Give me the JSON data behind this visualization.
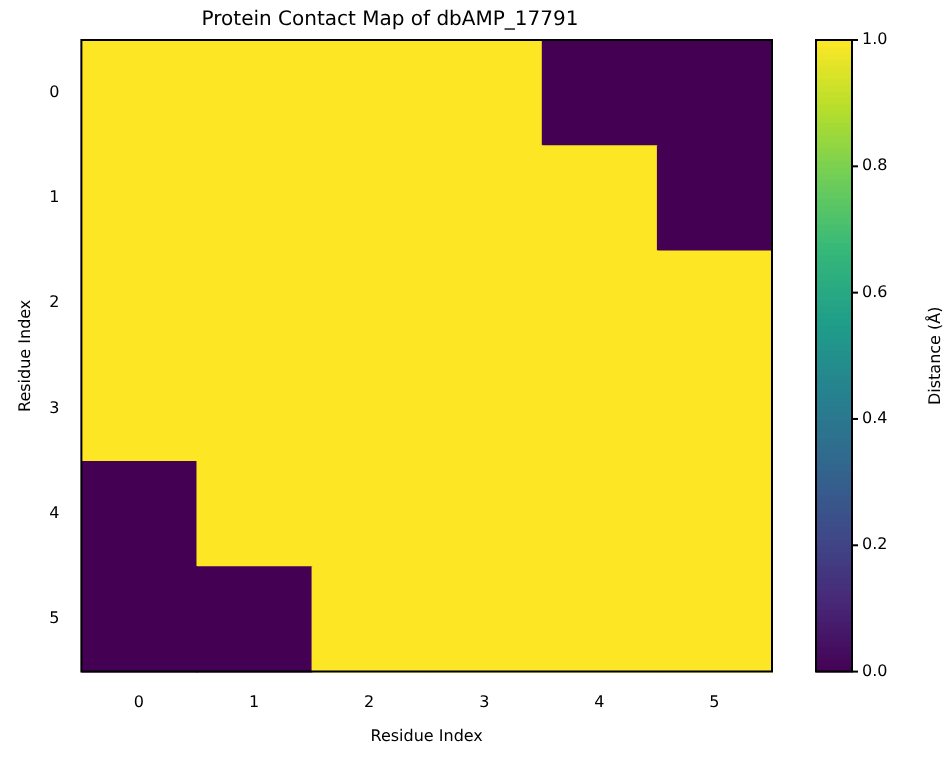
{
  "chart_data": {
    "type": "heatmap",
    "title": "Protein Contact Map of dbAMP_17791",
    "xlabel": "Residue Index",
    "ylabel": "Residue Index",
    "clabel": "Distance (Å)",
    "categories": [
      "0",
      "1",
      "2",
      "3",
      "4",
      "5"
    ],
    "y_categories": [
      "0",
      "1",
      "2",
      "3",
      "4",
      "5"
    ],
    "cells": [
      [
        1,
        1,
        1,
        1,
        0,
        0
      ],
      [
        1,
        1,
        1,
        1,
        1,
        0
      ],
      [
        1,
        1,
        1,
        1,
        1,
        1
      ],
      [
        1,
        1,
        1,
        1,
        1,
        1
      ],
      [
        0,
        1,
        1,
        1,
        1,
        1
      ],
      [
        0,
        0,
        1,
        1,
        1,
        1
      ]
    ],
    "clim": [
      0,
      1
    ],
    "cticks": [
      {
        "value": 0,
        "label": "0.0"
      },
      {
        "value": 0.2,
        "label": "0.2"
      },
      {
        "value": 0.4,
        "label": "0.4"
      },
      {
        "value": 0.6,
        "label": "0.6"
      },
      {
        "value": 0.8,
        "label": "0.8"
      },
      {
        "value": 1,
        "label": "1.0"
      }
    ]
  }
}
